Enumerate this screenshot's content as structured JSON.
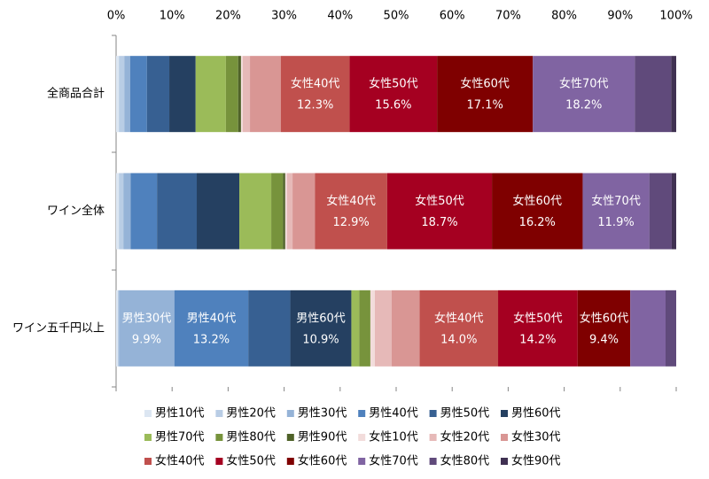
{
  "chart_data": {
    "type": "stacked_bar_100",
    "orientation": "horizontal",
    "categories": [
      "全商品合計",
      "ワイン全体",
      "ワイン五千円以上"
    ],
    "xlim": [
      0,
      100
    ],
    "xticks": [
      {
        "value": 0,
        "label": "0%"
      },
      {
        "value": 10,
        "label": "10%"
      },
      {
        "value": 20,
        "label": "20%"
      },
      {
        "value": 30,
        "label": "30%"
      },
      {
        "value": 40,
        "label": "40%"
      },
      {
        "value": 50,
        "label": "50%"
      },
      {
        "value": 60,
        "label": "60%"
      },
      {
        "value": 70,
        "label": "70%"
      },
      {
        "value": 80,
        "label": "80%"
      },
      {
        "value": 90,
        "label": "90%"
      },
      {
        "value": 100,
        "label": "100%"
      }
    ],
    "series": [
      {
        "name": "男性10代",
        "color": "#dce6f2",
        "values": [
          0.5,
          0.5,
          0.3
        ]
      },
      {
        "name": "男性20代",
        "color": "#b9cde5",
        "values": [
          1.0,
          0.8,
          0.2
        ]
      },
      {
        "name": "男性30代",
        "color": "#95b3d7",
        "values": [
          1.0,
          1.3,
          9.9
        ],
        "value_labels": [
          null,
          null,
          "9.9%"
        ]
      },
      {
        "name": "男性40代",
        "color": "#4f81bd",
        "values": [
          3.0,
          4.7,
          13.2
        ],
        "value_labels": [
          null,
          null,
          "13.2%"
        ]
      },
      {
        "name": "男性50代",
        "color": "#376092",
        "values": [
          4.0,
          7.1,
          7.5
        ]
      },
      {
        "name": "男性60代",
        "color": "#254061",
        "values": [
          4.7,
          7.6,
          10.9
        ],
        "value_labels": [
          null,
          null,
          "10.9%"
        ]
      },
      {
        "name": "男性70代",
        "color": "#9bbb59",
        "values": [
          5.4,
          5.7,
          1.4
        ]
      },
      {
        "name": "男性80代",
        "color": "#77933c",
        "values": [
          2.2,
          2.1,
          2.0
        ]
      },
      {
        "name": "男性90代",
        "color": "#4f6228",
        "values": [
          0.5,
          0.4,
          0.0
        ]
      },
      {
        "name": "女性10代",
        "color": "#f2dcdb",
        "values": [
          0.3,
          0.3,
          0.8
        ]
      },
      {
        "name": "女性20代",
        "color": "#e6b9b8",
        "values": [
          1.3,
          1.0,
          3.0
        ]
      },
      {
        "name": "女性30代",
        "color": "#d99694",
        "values": [
          5.5,
          4.0,
          5.0
        ]
      },
      {
        "name": "女性40代",
        "color": "#c0504d",
        "values": [
          12.3,
          12.9,
          14.0
        ],
        "value_labels": [
          "12.3%",
          "12.9%",
          "14.0%"
        ]
      },
      {
        "name": "女性50代",
        "color": "#a50021",
        "values": [
          15.6,
          18.7,
          14.2
        ],
        "value_labels": [
          "15.6%",
          "18.7%",
          "14.2%"
        ]
      },
      {
        "name": "女性60代",
        "color": "#7f0000",
        "values": [
          17.1,
          16.2,
          9.4
        ],
        "value_labels": [
          "17.1%",
          "16.2%",
          "9.4%"
        ]
      },
      {
        "name": "女性70代",
        "color": "#8064a2",
        "values": [
          18.2,
          11.9,
          6.3
        ],
        "value_labels": [
          "18.2%",
          "11.9%",
          null
        ]
      },
      {
        "name": "女性80代",
        "color": "#604a7b",
        "values": [
          6.5,
          4.0,
          1.9
        ]
      },
      {
        "name": "女性90代",
        "color": "#403152",
        "values": [
          0.9,
          0.8,
          0.0
        ]
      }
    ]
  }
}
